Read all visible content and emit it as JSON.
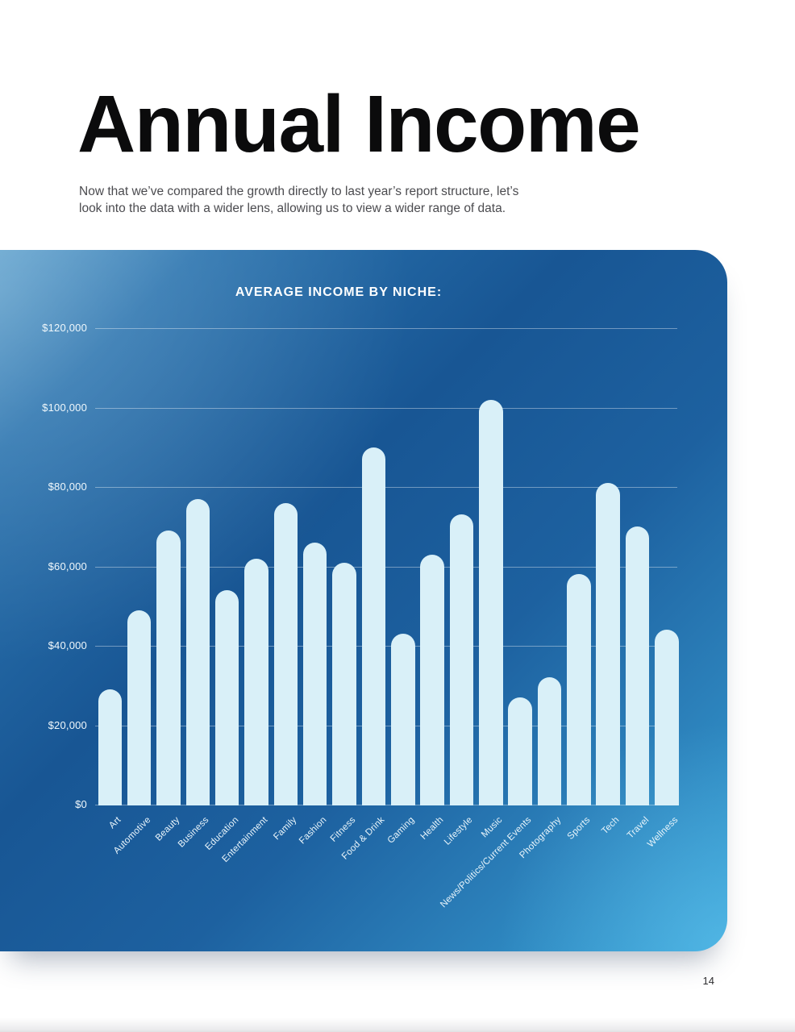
{
  "page": {
    "title": "Annual Income",
    "intro_line1": "Now that we’ve compared the growth directly to last year’s report structure, let’s",
    "intro_line2": "look into the data with a wider lens, allowing us to view a wider range of data.",
    "page_number": "14"
  },
  "chart_data": {
    "type": "bar",
    "title": "AVERAGE INCOME BY NICHE:",
    "categories": [
      "Art",
      "Automotive",
      "Beauty",
      "Business",
      "Education",
      "Entertainment",
      "Family",
      "Fashion",
      "Fitness",
      "Food & Drink",
      "Gaming",
      "Health",
      "Lifestyle",
      "Music",
      "News/Politics/Current Events",
      "Photography",
      "Sports",
      "Tech",
      "Travel",
      "Wellness"
    ],
    "values": [
      29000,
      49000,
      69000,
      77000,
      54000,
      62000,
      76000,
      66000,
      61000,
      90000,
      43000,
      63000,
      73000,
      102000,
      27000,
      32000,
      58000,
      81000,
      70000,
      44000
    ],
    "xlabel": "",
    "ylabel": "",
    "ylim": [
      0,
      120000
    ],
    "y_ticks": [
      {
        "label": "$120,000",
        "value": 120000
      },
      {
        "label": "$100,000",
        "value": 100000
      },
      {
        "label": "$80,000",
        "value": 80000
      },
      {
        "label": "$60,000",
        "value": 60000
      },
      {
        "label": "$40,000",
        "value": 40000
      },
      {
        "label": "$20,000",
        "value": 20000
      },
      {
        "label": "$0",
        "value": 0
      }
    ],
    "grid": true,
    "legend": "none",
    "layout": {
      "bar_color": "#d9f0f8",
      "card_color_dark": "#185694",
      "card_color_light": "#36a2d6",
      "gridline_color": "rgba(255,255,255,0.38)",
      "label_color": "#ffffff"
    }
  }
}
